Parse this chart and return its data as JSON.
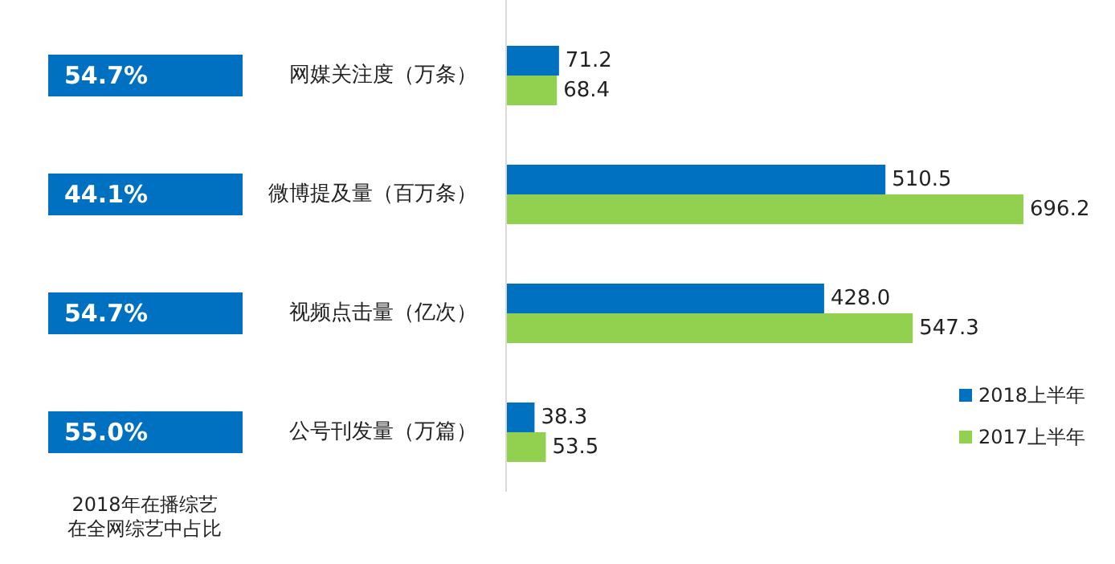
{
  "chart_data": {
    "type": "bar",
    "orientation": "horizontal",
    "categories": [
      "网媒关注度（万条）",
      "微博提及量（百万条）",
      "视频点击量（亿次）",
      "公号刊发量（万篇）"
    ],
    "series": [
      {
        "name": "2018上半年",
        "color": "#0070c0",
        "values": [
          71.2,
          510.5,
          428.0,
          38.3
        ],
        "value_labels": [
          "71.2",
          "510.5",
          "428.0",
          "38.3"
        ]
      },
      {
        "name": "2017上半年",
        "color": "#92d050",
        "values": [
          68.4,
          696.2,
          547.3,
          53.5
        ],
        "value_labels": [
          "68.4",
          "696.2",
          "547.3",
          "53.5"
        ]
      }
    ],
    "legend": "bottom right",
    "annotations": [
      "54.7%",
      "44.1%",
      "54.7%",
      "55.0%",
      "2018年在播综艺在全网综艺中占比"
    ]
  }
}
